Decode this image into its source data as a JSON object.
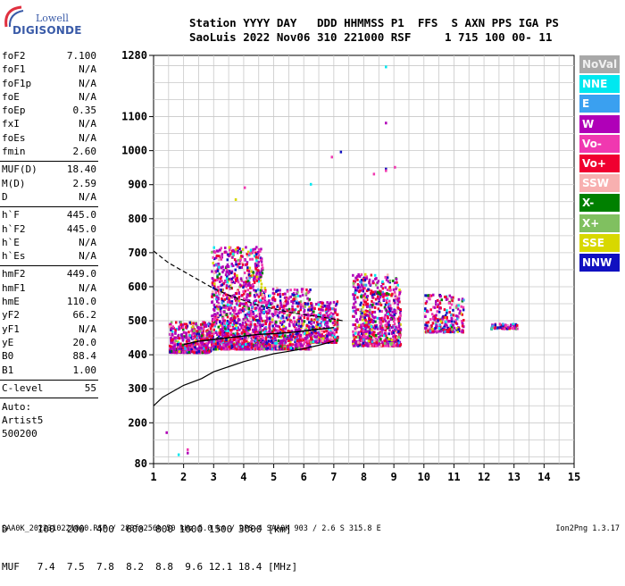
{
  "logo": {
    "line1": "Lowell",
    "line2": "DIGISONDE"
  },
  "header": {
    "line1": "Station YYYY DAY   DDD HHMMSS P1  FFS  S AXN PPS IGA PS",
    "line2": "SaoLuis 2022 Nov06 310 221000 RSF     1 715 100 00- 11"
  },
  "params": [
    [
      [
        "foF2",
        "7.100"
      ],
      [
        "foF1",
        "N/A"
      ],
      [
        "foF1p",
        "N/A"
      ],
      [
        "foE",
        "N/A"
      ],
      [
        "foEp",
        "0.35"
      ],
      [
        "fxI",
        "N/A"
      ],
      [
        "foEs",
        "N/A"
      ],
      [
        "fmin",
        "2.60"
      ]
    ],
    [
      [
        "MUF(D)",
        "18.40"
      ],
      [
        "M(D)",
        "2.59"
      ],
      [
        "D",
        "N/A"
      ]
    ],
    [
      [
        "h`F",
        "445.0"
      ],
      [
        "h`F2",
        "445.0"
      ],
      [
        "h`E",
        "N/A"
      ],
      [
        "h`Es",
        "N/A"
      ]
    ],
    [
      [
        "hmF2",
        "449.0"
      ],
      [
        "hmF1",
        "N/A"
      ],
      [
        "hmE",
        "110.0"
      ],
      [
        "yF2",
        "66.2"
      ],
      [
        "yF1",
        "N/A"
      ],
      [
        "yE",
        "20.0"
      ],
      [
        "B0",
        "88.4"
      ],
      [
        "B1",
        "1.00"
      ]
    ],
    [
      [
        "C-level",
        "55"
      ]
    ]
  ],
  "auto": [
    "Auto:",
    "Artist5",
    "500200"
  ],
  "legend": [
    {
      "label": "NoVal",
      "color": "#a8a8a8"
    },
    {
      "label": "NNE",
      "color": "#00e8f0"
    },
    {
      "label": "E",
      "color": "#3aa0f0"
    },
    {
      "label": "W",
      "color": "#b000b8"
    },
    {
      "label": "Vo-",
      "color": "#f038b0"
    },
    {
      "label": "Vo+",
      "color": "#f00030"
    },
    {
      "label": "SSW",
      "color": "#f8b0b0"
    },
    {
      "label": "X-",
      "color": "#008000"
    },
    {
      "label": "X+",
      "color": "#80c060"
    },
    {
      "label": "SSE",
      "color": "#d8d800"
    },
    {
      "label": "NNW",
      "color": "#1010c0"
    }
  ],
  "footer": {
    "d_row": "D     100  200  400  600  800 1000 1500 3000 [km]",
    "muf_row": "MUF   7.4  7.5  7.8  8.2  8.8  9.6 12.1 18.4 [MHz]",
    "bottom_left": "SAA0K_2022310221000.RSF / 280fx256h 50 kHz 5.0 km / DPS-4 SAA0K 903 / 2.6 S 315.8 E",
    "bottom_right": "Ion2Png 1.3.17"
  },
  "chart_data": {
    "type": "scatter",
    "title": "",
    "xlabel": "",
    "ylabel": "",
    "xlim": [
      1,
      15
    ],
    "ylim": [
      80,
      1280
    ],
    "xticks": [
      1,
      2,
      3,
      4,
      5,
      6,
      7,
      8,
      9,
      10,
      11,
      12,
      13,
      14,
      15
    ],
    "yticks": [
      80,
      200,
      300,
      400,
      500,
      600,
      700,
      800,
      900,
      1000,
      1100,
      1280
    ],
    "grid": true,
    "echo_clusters": [
      {
        "f_range": [
          1.5,
          2.9
        ],
        "h_range": [
          410,
          500
        ],
        "density": 1.5
      },
      {
        "f_range": [
          2.9,
          4.6
        ],
        "h_range": [
          420,
          720
        ],
        "density": 3.0
      },
      {
        "f_range": [
          4.6,
          6.2
        ],
        "h_range": [
          420,
          600
        ],
        "density": 1.8
      },
      {
        "f_range": [
          6.2,
          7.1
        ],
        "h_range": [
          440,
          560
        ],
        "density": 1.5
      },
      {
        "f_range": [
          7.6,
          9.2
        ],
        "h_range": [
          430,
          640
        ],
        "density": 2.0
      },
      {
        "f_range": [
          10.0,
          11.3
        ],
        "h_range": [
          470,
          580
        ],
        "density": 0.8
      },
      {
        "f_range": [
          12.2,
          13.1
        ],
        "h_range": [
          480,
          495
        ],
        "density": 0.3
      }
    ],
    "isolated_points": [
      [
        1.4,
        175
      ],
      [
        1.8,
        110
      ],
      [
        2.1,
        125
      ],
      [
        2.1,
        115
      ],
      [
        8.7,
        1250
      ],
      [
        8.7,
        1085
      ],
      [
        8.7,
        950
      ],
      [
        9.0,
        955
      ],
      [
        8.3,
        935
      ],
      [
        7.2,
        1000
      ],
      [
        6.9,
        985
      ],
      [
        4.0,
        895
      ],
      [
        3.7,
        860
      ],
      [
        6.2,
        905
      ],
      [
        8.7,
        945
      ]
    ],
    "profile_line": {
      "x": [
        1,
        1.3,
        2.0,
        2.6,
        3,
        3.5,
        4,
        4.5,
        5,
        5.5,
        6,
        6.5,
        7.0
      ],
      "y": [
        250,
        275,
        310,
        330,
        350,
        365,
        380,
        392,
        403,
        410,
        418,
        428,
        440
      ]
    },
    "virtual_height_trace": {
      "x": [
        2.0,
        2.5,
        3,
        3.5,
        4,
        4.5,
        5,
        5.5,
        6,
        6.5,
        7.0
      ],
      "y": [
        430,
        440,
        445,
        450,
        455,
        460,
        462,
        465,
        470,
        475,
        480
      ]
    },
    "dashed_line": {
      "x": [
        1,
        1.5,
        2,
        2.5,
        3,
        3.5,
        4,
        4.5,
        5,
        5.5,
        6,
        6.5,
        7,
        7.3
      ],
      "y": [
        705,
        670,
        645,
        620,
        595,
        575,
        560,
        545,
        535,
        525,
        518,
        512,
        505,
        500
      ]
    }
  }
}
